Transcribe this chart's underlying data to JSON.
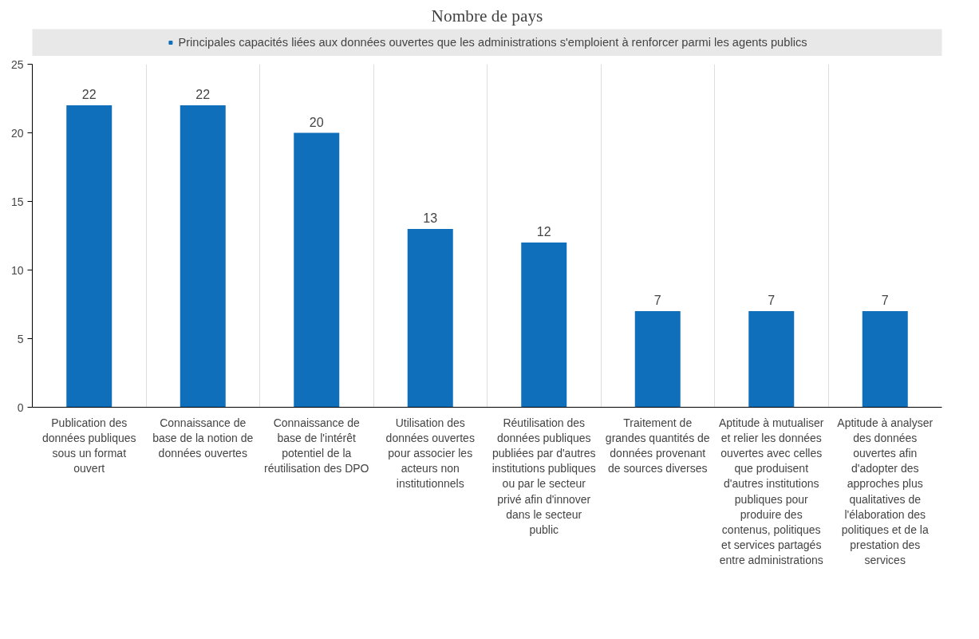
{
  "chart_data": {
    "type": "bar",
    "title": "Nombre de pays",
    "categories": [
      "Publication des\ndonnées publiques\nsous un format\nouvert",
      "Connaissance de\nbase de la notion de\ndonnées ouvertes",
      "Connaissance de\nbase de l'intérêt\npotentiel de la\nréutilisation des DPO",
      "Utilisation des\ndonnées ouvertes\npour associer les\nacteurs non\ninstitutionnels",
      "Réutilisation des\ndonnées publiques\npubliées par d'autres\ninstitutions publiques\nou par le secteur\nprivé afin d'innover\ndans le secteur\npublic",
      "Traitement de\ngrandes quantités de\ndonnées provenant\nde sources diverses",
      "Aptitude à mutualiser\net relier les données\nouvertes avec celles\nque produisent\nd'autres institutions\npubliques pour\nproduire des\ncontenus, politiques\net services partagés\nentre administrations",
      "Aptitude à analyser\ndes données\nouvertes afin\nd'adopter des\napproches plus\nqualitatives de\nl'élaboration des\npolitiques et de la\nprestation des\nservices"
    ],
    "series": [
      {
        "name": "Principales capacités liées aux données ouvertes que les administrations s'emploient à renforcer parmi les agents publics",
        "color": "#0f6fba",
        "values": [
          22,
          22,
          20,
          13,
          12,
          7,
          7,
          7
        ]
      }
    ],
    "ylim": [
      0,
      25
    ],
    "yticks": [
      0,
      5,
      10,
      15,
      20,
      25
    ],
    "grid": "x",
    "legend": "top",
    "data_labels": true
  }
}
